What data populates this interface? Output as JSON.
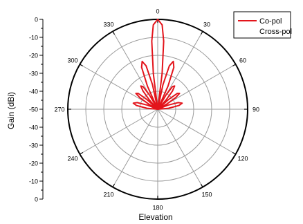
{
  "chart_data": {
    "type": "polar",
    "title": "",
    "xlabel": "Elevation",
    "ylabel": "Gain (dBi)",
    "radial_range": [
      -50,
      0
    ],
    "radial_ticks": [
      0,
      -10,
      -20,
      -30,
      -40,
      -50
    ],
    "radial_tick_labels": [
      "0",
      "-10",
      "-20",
      "-30",
      "-40",
      "-50"
    ],
    "angle_ticks": [
      0,
      30,
      60,
      90,
      120,
      150,
      180,
      210,
      240,
      270,
      300,
      330
    ],
    "angle_tick_labels": [
      "0",
      "30",
      "60",
      "90",
      "120",
      "150",
      "180",
      "210",
      "240",
      "270",
      "300",
      "330"
    ],
    "angle_direction": "clockwise",
    "angle_zero": "top",
    "grid": true,
    "legend_position": "top-right",
    "series": [
      {
        "name": "Co-pol",
        "color": "#e3141b",
        "points": [
          [
            -90,
            -50
          ],
          [
            -85,
            -44
          ],
          [
            -80,
            -38
          ],
          [
            -76,
            -36
          ],
          [
            -72,
            -38
          ],
          [
            -68,
            -44
          ],
          [
            -64,
            -50
          ],
          [
            -60,
            -44
          ],
          [
            -57,
            -38
          ],
          [
            -54,
            -35
          ],
          [
            -51,
            -36
          ],
          [
            -48,
            -42
          ],
          [
            -45,
            -50
          ],
          [
            -42,
            -43
          ],
          [
            -39,
            -37
          ],
          [
            -36,
            -34
          ],
          [
            -33,
            -35
          ],
          [
            -30,
            -41
          ],
          [
            -27,
            -50
          ],
          [
            -24,
            -36
          ],
          [
            -21,
            -25
          ],
          [
            -18,
            -22
          ],
          [
            -15,
            -25
          ],
          [
            -12,
            -36
          ],
          [
            -9,
            -50
          ],
          [
            -7,
            -30
          ],
          [
            -5,
            -12
          ],
          [
            -3,
            -3
          ],
          [
            0,
            0
          ],
          [
            3,
            -3
          ],
          [
            5,
            -12
          ],
          [
            7,
            -30
          ],
          [
            9,
            -50
          ],
          [
            12,
            -36
          ],
          [
            15,
            -25
          ],
          [
            18,
            -22
          ],
          [
            21,
            -25
          ],
          [
            24,
            -36
          ],
          [
            27,
            -50
          ],
          [
            30,
            -41
          ],
          [
            33,
            -35
          ],
          [
            36,
            -34
          ],
          [
            39,
            -37
          ],
          [
            42,
            -43
          ],
          [
            45,
            -50
          ],
          [
            48,
            -42
          ],
          [
            51,
            -36
          ],
          [
            54,
            -35
          ],
          [
            57,
            -38
          ],
          [
            60,
            -44
          ],
          [
            64,
            -50
          ],
          [
            68,
            -44
          ],
          [
            72,
            -38
          ],
          [
            76,
            -36
          ],
          [
            80,
            -38
          ],
          [
            85,
            -44
          ],
          [
            90,
            -50
          ]
        ]
      },
      {
        "name": "Cross-pol",
        "color": "#e3141b",
        "points": []
      }
    ]
  }
}
